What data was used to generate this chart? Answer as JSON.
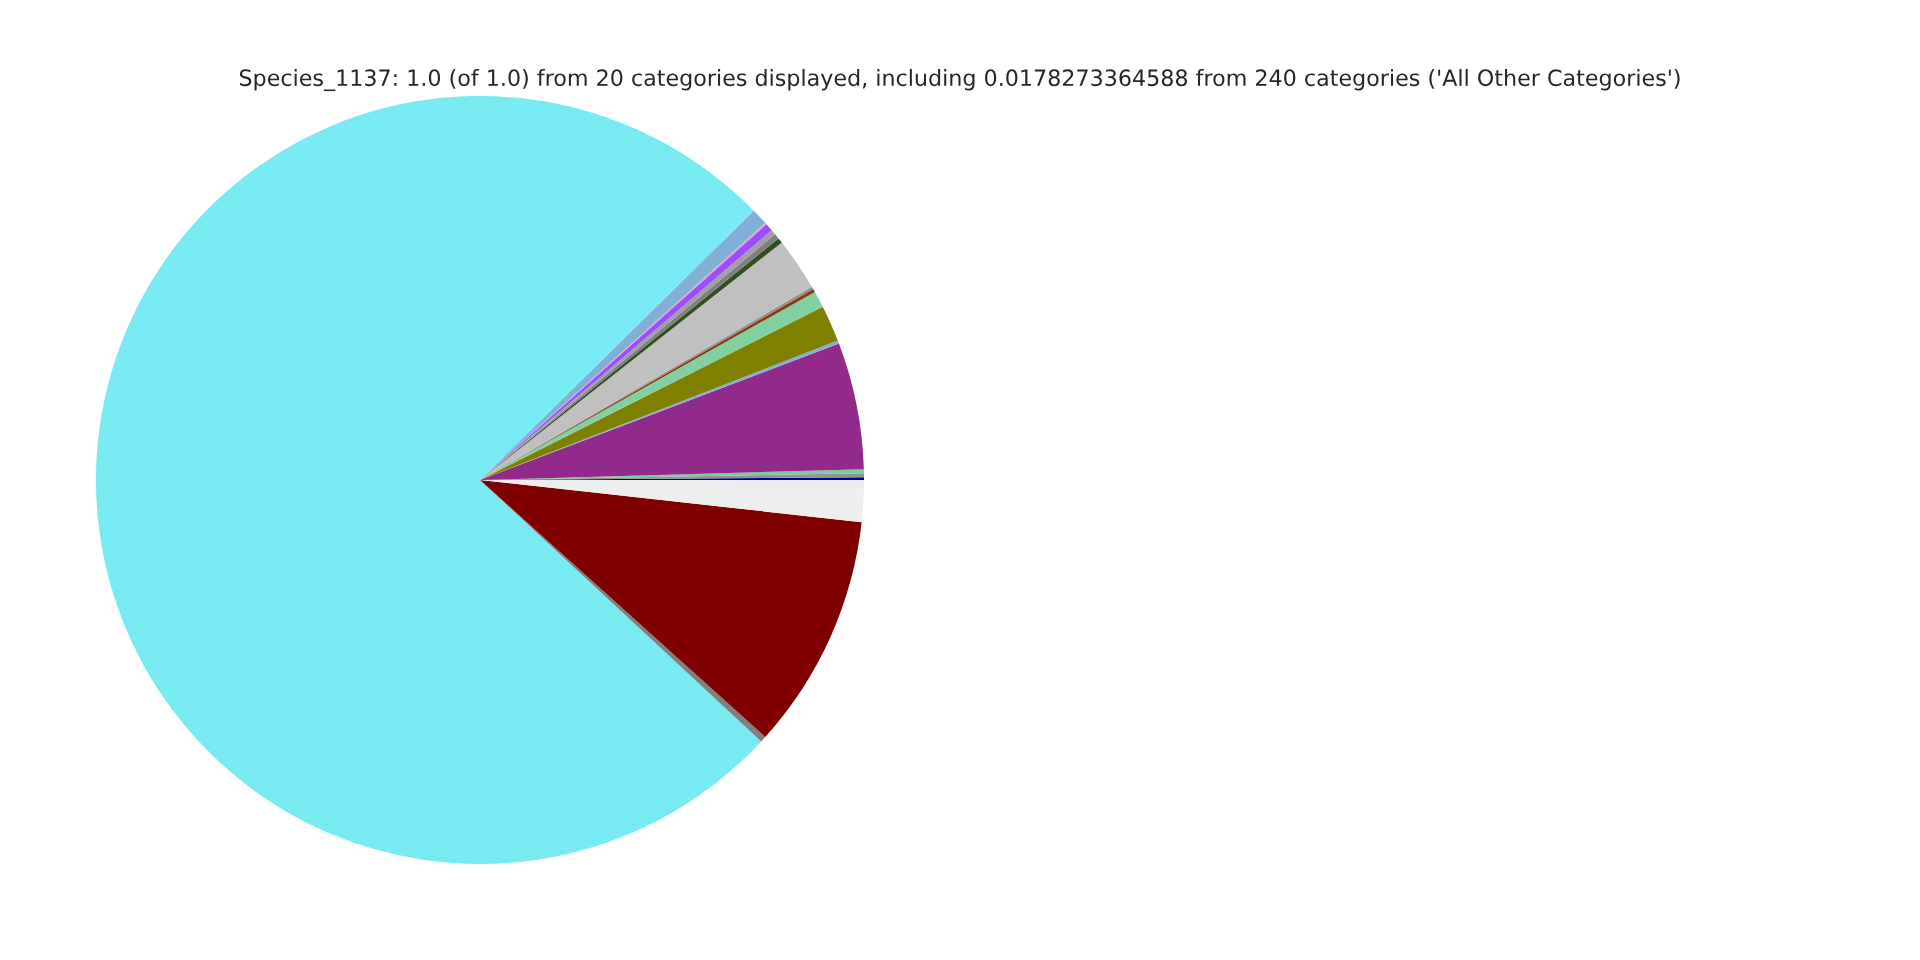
{
  "chart_data": {
    "type": "pie",
    "title": "Species_1137: 1.0 (of 1.0) from 20 categories displayed, including 0.0178273364588 from 240 categories ('All Other Categories')",
    "categories": [
      null,
      null,
      null,
      null,
      null,
      null,
      null,
      null,
      null,
      null,
      null,
      null,
      null,
      null,
      null,
      null,
      null,
      null,
      null,
      null
    ],
    "values": [
      0.11,
      0.17,
      0.17,
      5.33,
      0.14,
      1.53,
      0.69,
      0.14,
      0.11,
      2.22,
      0.22,
      0.22,
      0.22,
      0.33,
      0.08,
      0.69,
      75.71,
      0.25,
      9.92,
      1.75
    ],
    "colors": [
      "#0000a0",
      "#8a9a8a",
      "#80c8a0",
      "#922a8c",
      "#80b0e0",
      "#808000",
      "#80d0a0",
      "#8b3a10",
      "#909090",
      "#c0c0c0",
      "#2f4f1f",
      "#808080",
      "#a0a0a0",
      "#9b4dff",
      "#e8a0c0",
      "#80b0d8",
      "#78ebf2",
      "#808080",
      "#800000",
      "#eeeeee"
    ]
  }
}
